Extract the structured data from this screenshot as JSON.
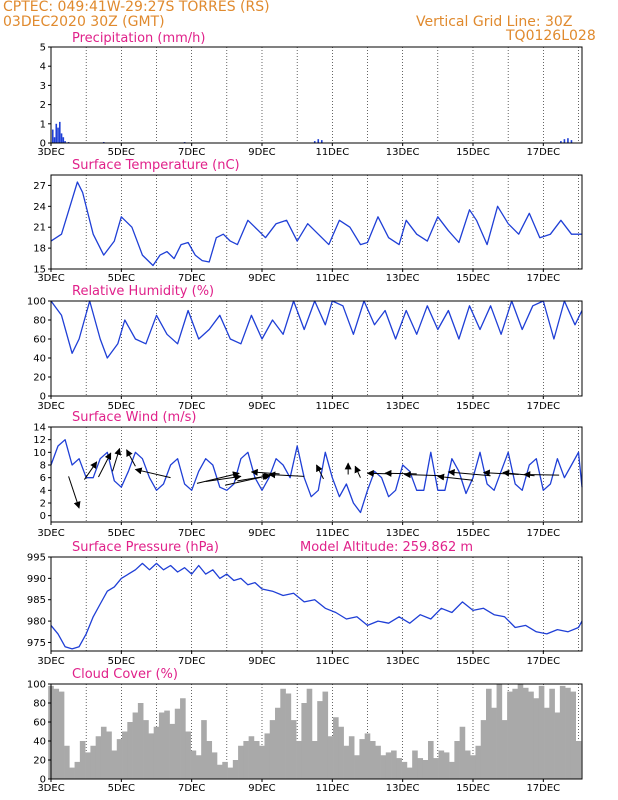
{
  "header": {
    "line1": "CPTEC:   049:41W-29:27S   TORRES (RS)",
    "line2": "03DEC2020 30Z (GMT)",
    "right1": "Vertical Grid Line: 30Z",
    "right2": "TQ0126L028"
  },
  "colors": {
    "header": "#e08a2e",
    "title": "#e0218a",
    "series": "#1f3fd6",
    "cloud": "#a9a9a9",
    "bar": "#1f3fd6"
  },
  "x_labels": [
    "3DEC",
    "5DEC",
    "7DEC",
    "9DEC",
    "11DEC",
    "13DEC",
    "15DEC",
    "17DEC"
  ],
  "x_range_days": [
    3,
    18.1
  ],
  "chart_data": [
    {
      "id": "precip",
      "type": "bar",
      "title": "Precipitation (mm/h)",
      "ylim": [
        0,
        5
      ],
      "yticks": [
        0,
        1,
        2,
        3,
        4,
        5
      ],
      "x": [
        3.05,
        3.1,
        3.15,
        3.2,
        3.25,
        3.3,
        3.35,
        3.4,
        3.5,
        4.5,
        6.8,
        10.5,
        10.6,
        10.7,
        17.5,
        17.6,
        17.7,
        17.8
      ],
      "values": [
        0.7,
        0.3,
        1.0,
        0.8,
        1.1,
        0.5,
        0.3,
        0.1,
        0.05,
        0.05,
        0.05,
        0.1,
        0.2,
        0.15,
        0.1,
        0.2,
        0.25,
        0.15
      ]
    },
    {
      "id": "temp",
      "type": "line",
      "title": "Surface Temperature (nC)",
      "ylim": [
        15,
        28.5
      ],
      "yticks": [
        15,
        18,
        21,
        24,
        27
      ],
      "x": [
        3.0,
        3.3,
        3.6,
        3.75,
        3.9,
        4.2,
        4.5,
        4.8,
        5.0,
        5.3,
        5.6,
        5.9,
        6.1,
        6.3,
        6.5,
        6.7,
        6.9,
        7.1,
        7.3,
        7.5,
        7.7,
        7.9,
        8.1,
        8.3,
        8.6,
        8.9,
        9.1,
        9.4,
        9.7,
        10.0,
        10.3,
        10.6,
        10.9,
        11.2,
        11.5,
        11.8,
        12.0,
        12.3,
        12.6,
        12.9,
        13.1,
        13.4,
        13.7,
        14.0,
        14.3,
        14.6,
        14.9,
        15.1,
        15.4,
        15.7,
        16.0,
        16.3,
        16.6,
        16.9,
        17.2,
        17.5,
        17.8,
        18.1
      ],
      "values": [
        19,
        20,
        25,
        27.5,
        26,
        20,
        17,
        19,
        22.5,
        21,
        17,
        15.5,
        17,
        17.5,
        16.5,
        18.5,
        18.8,
        17,
        16.2,
        16,
        19.5,
        20,
        19,
        18.5,
        22,
        20.5,
        19.5,
        21.5,
        22,
        19,
        21.5,
        20,
        18.5,
        22,
        21,
        18.5,
        18.8,
        22.5,
        19.5,
        18.5,
        22,
        20,
        19,
        22.5,
        20.5,
        18.8,
        23.5,
        22,
        18.5,
        24,
        21.5,
        20,
        23,
        19.5,
        20,
        22,
        20,
        20
      ]
    },
    {
      "id": "rh",
      "type": "line",
      "title": "Relative Humidity (%)",
      "ylim": [
        0,
        100
      ],
      "yticks": [
        0,
        20,
        40,
        60,
        80,
        100
      ],
      "x": [
        3.0,
        3.3,
        3.6,
        3.8,
        4.1,
        4.4,
        4.6,
        4.9,
        5.1,
        5.4,
        5.7,
        6.0,
        6.3,
        6.6,
        6.9,
        7.2,
        7.5,
        7.8,
        8.1,
        8.4,
        8.7,
        9.0,
        9.3,
        9.6,
        9.9,
        10.2,
        10.5,
        10.8,
        11.0,
        11.3,
        11.6,
        11.9,
        12.2,
        12.5,
        12.8,
        13.1,
        13.4,
        13.7,
        14.0,
        14.3,
        14.6,
        14.9,
        15.2,
        15.5,
        15.8,
        16.1,
        16.4,
        16.7,
        17.0,
        17.3,
        17.6,
        17.9,
        18.1
      ],
      "values": [
        100,
        85,
        45,
        60,
        100,
        60,
        40,
        55,
        80,
        60,
        55,
        85,
        65,
        55,
        90,
        60,
        70,
        85,
        60,
        55,
        85,
        60,
        80,
        65,
        100,
        70,
        100,
        75,
        100,
        95,
        65,
        100,
        75,
        90,
        60,
        90,
        65,
        95,
        70,
        90,
        60,
        95,
        70,
        95,
        65,
        100,
        70,
        95,
        100,
        60,
        100,
        75,
        90
      ]
    },
    {
      "id": "wind",
      "type": "line",
      "title": "Surface Wind (m/s)",
      "ylim": [
        -1,
        14
      ],
      "yticks": [
        0,
        2,
        4,
        6,
        8,
        10,
        12,
        14
      ],
      "x": [
        3.0,
        3.2,
        3.4,
        3.6,
        3.8,
        4.0,
        4.2,
        4.4,
        4.6,
        4.8,
        5.0,
        5.2,
        5.4,
        5.6,
        5.8,
        6.0,
        6.2,
        6.4,
        6.6,
        6.8,
        7.0,
        7.2,
        7.4,
        7.6,
        7.8,
        8.0,
        8.2,
        8.4,
        8.6,
        8.8,
        9.0,
        9.2,
        9.4,
        9.6,
        9.8,
        10.0,
        10.2,
        10.4,
        10.6,
        10.8,
        11.0,
        11.2,
        11.4,
        11.6,
        11.8,
        12.0,
        12.2,
        12.4,
        12.6,
        12.8,
        13.0,
        13.2,
        13.4,
        13.6,
        13.8,
        14.0,
        14.2,
        14.4,
        14.6,
        14.8,
        15.0,
        15.2,
        15.4,
        15.6,
        15.8,
        16.0,
        16.2,
        16.4,
        16.6,
        16.8,
        17.0,
        17.2,
        17.4,
        17.6,
        17.8,
        18.0,
        18.1
      ],
      "values": [
        8,
        11,
        12,
        8,
        9,
        6,
        6,
        9,
        10,
        5.5,
        4.5,
        7,
        10,
        9,
        6,
        4,
        5,
        8,
        9,
        5,
        4,
        7,
        9,
        8,
        4.5,
        4,
        5,
        9,
        10,
        6,
        4,
        6,
        9,
        8,
        6,
        11,
        6,
        3,
        4,
        10,
        6,
        3,
        5,
        2,
        0.5,
        4,
        7,
        6,
        3,
        4,
        8,
        7,
        4,
        4,
        10,
        4,
        4,
        9,
        7,
        3.5,
        6,
        10,
        5,
        4,
        7,
        10,
        5,
        4,
        8,
        9,
        4,
        5,
        9,
        6,
        8,
        10,
        4.5
      ],
      "arrows": [
        {
          "x": 3.5,
          "y": 6.2,
          "dx": 0.3,
          "dy": -5.0
        },
        {
          "x": 3.95,
          "y": 5.7,
          "dx": 0.35,
          "dy": 2.8
        },
        {
          "x": 4.35,
          "y": 6.1,
          "dx": 0.35,
          "dy": 3.8
        },
        {
          "x": 4.75,
          "y": 7.0,
          "dx": 0.2,
          "dy": 3.6
        },
        {
          "x": 5.4,
          "y": 7.8,
          "dx": -0.25,
          "dy": 2.6
        },
        {
          "x": 6.4,
          "y": 6.0,
          "dx": -1.0,
          "dy": 1.3
        },
        {
          "x": 7.15,
          "y": 5.1,
          "dx": 1.2,
          "dy": 1.6
        },
        {
          "x": 7.4,
          "y": 5.4,
          "dx": 1.0,
          "dy": 0.8
        },
        {
          "x": 7.95,
          "y": 4.8,
          "dx": 1.3,
          "dy": 1.6
        },
        {
          "x": 8.3,
          "y": 5.5,
          "dx": 0.9,
          "dy": 0.8
        },
        {
          "x": 9.5,
          "y": 6.6,
          "dx": -0.8,
          "dy": 0.3
        },
        {
          "x": 10.2,
          "y": 6.2,
          "dx": -1.0,
          "dy": 0.3
        },
        {
          "x": 10.75,
          "y": 5.8,
          "dx": -0.2,
          "dy": 2.2
        },
        {
          "x": 11.45,
          "y": 6.5,
          "dx": 0.0,
          "dy": 1.8
        },
        {
          "x": 11.8,
          "y": 6.0,
          "dx": -0.15,
          "dy": 1.8
        },
        {
          "x": 12.7,
          "y": 6.6,
          "dx": -0.7,
          "dy": 0.1
        },
        {
          "x": 13.4,
          "y": 6.6,
          "dx": -0.9,
          "dy": 0.1
        },
        {
          "x": 14.15,
          "y": 6.3,
          "dx": -1.1,
          "dy": 0.2
        },
        {
          "x": 15.0,
          "y": 5.6,
          "dx": -1.0,
          "dy": 0.6
        },
        {
          "x": 15.5,
          "y": 6.3,
          "dx": -1.2,
          "dy": 0.6
        },
        {
          "x": 16.3,
          "y": 6.5,
          "dx": -1.0,
          "dy": 0.3
        },
        {
          "x": 16.75,
          "y": 6.3,
          "dx": -0.9,
          "dy": 0.5
        },
        {
          "x": 17.45,
          "y": 6.4,
          "dx": -1.0,
          "dy": 0.1
        }
      ]
    },
    {
      "id": "pressure",
      "type": "line",
      "title": "Surface Pressure (hPa)",
      "annotation": "Model Altitude: 259.862 m",
      "ylim": [
        973,
        995
      ],
      "yticks": [
        975,
        980,
        985,
        990,
        995
      ],
      "x": [
        3.0,
        3.2,
        3.4,
        3.6,
        3.8,
        4.0,
        4.2,
        4.4,
        4.6,
        4.8,
        5.0,
        5.2,
        5.4,
        5.6,
        5.8,
        6.0,
        6.2,
        6.4,
        6.6,
        6.8,
        7.0,
        7.2,
        7.4,
        7.6,
        7.8,
        8.0,
        8.2,
        8.4,
        8.6,
        8.8,
        9.0,
        9.3,
        9.6,
        9.9,
        10.2,
        10.5,
        10.8,
        11.1,
        11.4,
        11.7,
        12.0,
        12.3,
        12.6,
        12.9,
        13.2,
        13.5,
        13.8,
        14.1,
        14.4,
        14.7,
        15.0,
        15.3,
        15.6,
        15.9,
        16.2,
        16.5,
        16.8,
        17.1,
        17.4,
        17.7,
        18.0,
        18.1
      ],
      "values": [
        979,
        977,
        974,
        973.5,
        974,
        977,
        981,
        984,
        987,
        988,
        990,
        991,
        992,
        993.5,
        992,
        993.5,
        992,
        993,
        991.5,
        992.5,
        991,
        993,
        991,
        992,
        990,
        991,
        989.5,
        990,
        988.5,
        989,
        987.5,
        987,
        986,
        986.5,
        984.5,
        985,
        983,
        982,
        980.5,
        981,
        979,
        980,
        979.5,
        981,
        979.5,
        981.5,
        980.5,
        983,
        982,
        984.5,
        982.5,
        983,
        981.5,
        981,
        978.5,
        979,
        977.5,
        977,
        978,
        977.5,
        978.5,
        980
      ]
    },
    {
      "id": "cloud",
      "type": "bar",
      "title": "Cloud Cover (%)",
      "ylim": [
        0,
        100
      ],
      "yticks": [
        0,
        20,
        40,
        60,
        80,
        100
      ],
      "x": [
        3.0,
        3.15,
        3.3,
        3.45,
        3.6,
        3.75,
        3.9,
        4.05,
        4.2,
        4.35,
        4.5,
        4.65,
        4.8,
        4.95,
        5.1,
        5.25,
        5.4,
        5.55,
        5.7,
        5.85,
        6.0,
        6.15,
        6.3,
        6.45,
        6.6,
        6.75,
        6.9,
        7.05,
        7.2,
        7.35,
        7.5,
        7.65,
        7.8,
        7.95,
        8.1,
        8.25,
        8.4,
        8.55,
        8.7,
        8.85,
        9.0,
        9.15,
        9.3,
        9.45,
        9.6,
        9.75,
        9.9,
        10.05,
        10.2,
        10.35,
        10.5,
        10.65,
        10.8,
        10.95,
        11.1,
        11.25,
        11.4,
        11.55,
        11.7,
        11.85,
        12.0,
        12.15,
        12.3,
        12.45,
        12.6,
        12.75,
        12.9,
        13.05,
        13.2,
        13.35,
        13.5,
        13.65,
        13.8,
        13.95,
        14.1,
        14.25,
        14.4,
        14.55,
        14.7,
        14.85,
        15.0,
        15.15,
        15.3,
        15.45,
        15.6,
        15.75,
        15.9,
        16.05,
        16.2,
        16.35,
        16.5,
        16.65,
        16.8,
        16.95,
        17.1,
        17.25,
        17.4,
        17.55,
        17.7,
        17.85,
        18.0
      ],
      "values": [
        98,
        95,
        92,
        35,
        12,
        18,
        40,
        28,
        35,
        45,
        55,
        50,
        30,
        42,
        50,
        60,
        70,
        80,
        62,
        48,
        55,
        70,
        72,
        58,
        74,
        85,
        50,
        30,
        25,
        62,
        40,
        28,
        15,
        18,
        12,
        20,
        35,
        40,
        45,
        40,
        35,
        48,
        62,
        75,
        95,
        90,
        62,
        40,
        80,
        95,
        40,
        82,
        92,
        45,
        65,
        55,
        35,
        45,
        25,
        42,
        48,
        40,
        35,
        25,
        28,
        30,
        22,
        18,
        12,
        30,
        22,
        20,
        40,
        22,
        30,
        28,
        18,
        40,
        55,
        30,
        25,
        35,
        62,
        95,
        75,
        100,
        62,
        92,
        95,
        100,
        96,
        92,
        85,
        98,
        75,
        95,
        70,
        98,
        96,
        92,
        40
      ]
    }
  ]
}
